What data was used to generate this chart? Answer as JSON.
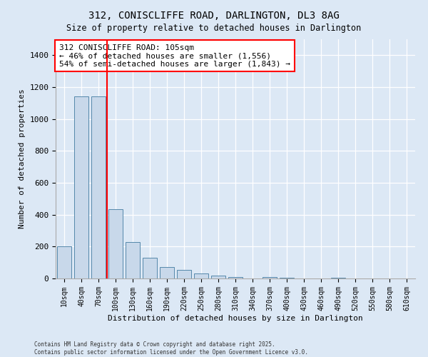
{
  "title": "312, CONISCLIFFE ROAD, DARLINGTON, DL3 8AG",
  "subtitle": "Size of property relative to detached houses in Darlington",
  "xlabel": "Distribution of detached houses by size in Darlington",
  "ylabel": "Number of detached properties",
  "categories": [
    "10sqm",
    "40sqm",
    "70sqm",
    "100sqm",
    "130sqm",
    "160sqm",
    "190sqm",
    "220sqm",
    "250sqm",
    "280sqm",
    "310sqm",
    "340sqm",
    "370sqm",
    "400sqm",
    "430sqm",
    "460sqm",
    "490sqm",
    "520sqm",
    "550sqm",
    "580sqm",
    "610sqm"
  ],
  "values": [
    200,
    1140,
    1140,
    435,
    230,
    130,
    70,
    55,
    30,
    20,
    10,
    0,
    8,
    5,
    0,
    0,
    4,
    0,
    0,
    0,
    0
  ],
  "bar_color": "#c8d8ea",
  "bar_edge_color": "#5588aa",
  "vline_color": "red",
  "vline_x": 2.5,
  "annotation_text": "312 CONISCLIFFE ROAD: 105sqm\n← 46% of detached houses are smaller (1,556)\n54% of semi-detached houses are larger (1,843) →",
  "annotation_box_color": "white",
  "annotation_box_edge_color": "red",
  "ylim": [
    0,
    1500
  ],
  "yticks": [
    0,
    200,
    400,
    600,
    800,
    1000,
    1200,
    1400
  ],
  "footer1": "Contains HM Land Registry data © Crown copyright and database right 2025.",
  "footer2": "Contains public sector information licensed under the Open Government Licence v3.0.",
  "bg_color": "#dce8f5",
  "plot_bg_color": "#dce8f5",
  "grid_color": "#c0cfe0",
  "title_fontsize": 10,
  "subtitle_fontsize": 9
}
